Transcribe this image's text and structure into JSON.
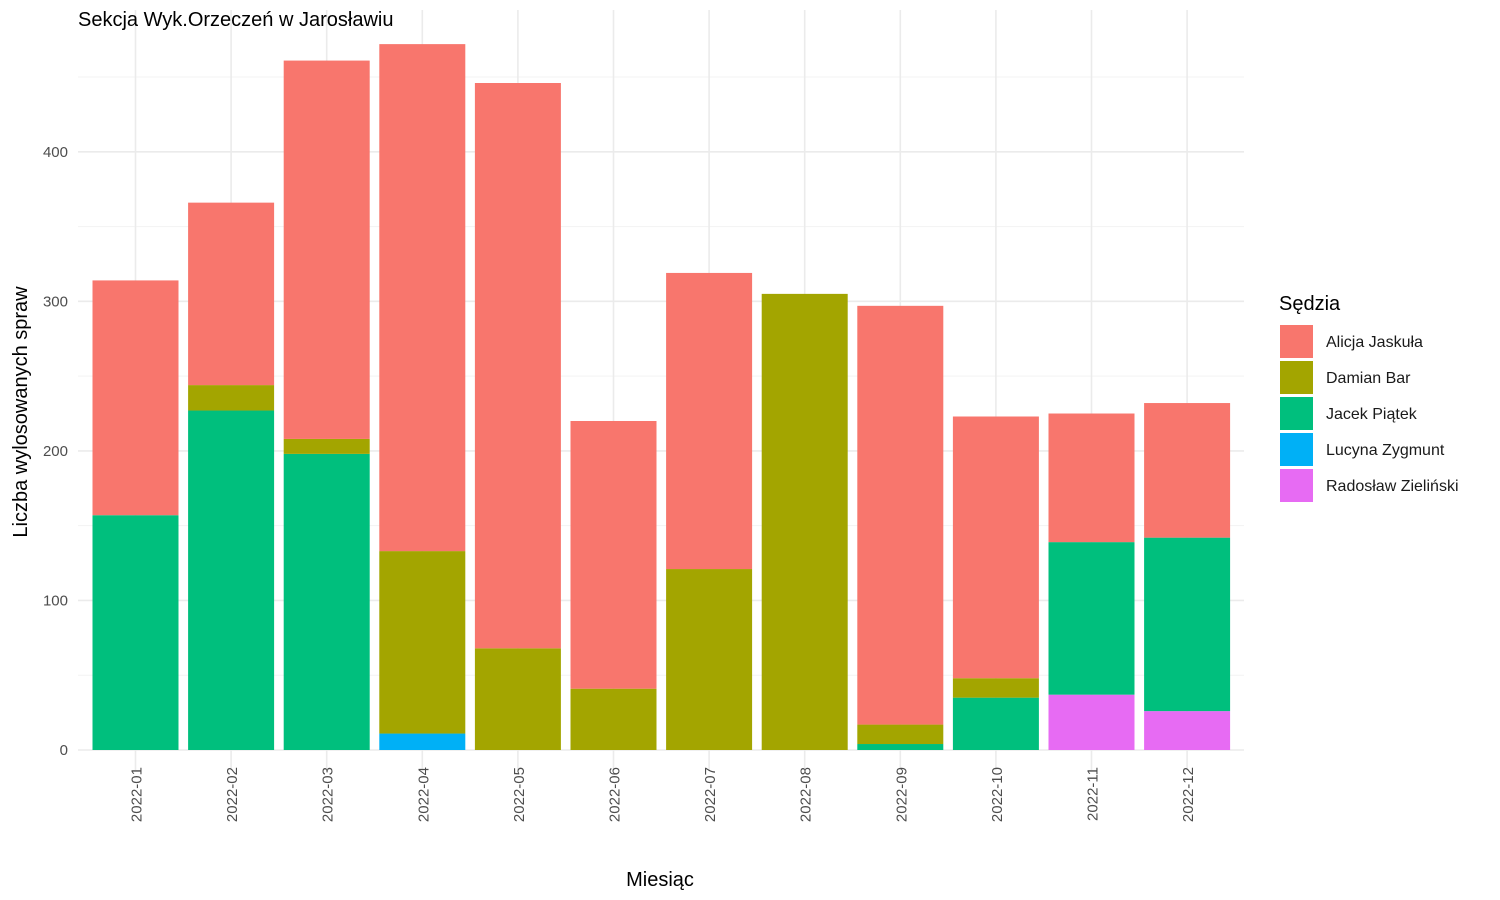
{
  "chart_data": {
    "type": "bar",
    "stacked": true,
    "title": "Sekcja Wyk.Orzeczeń w Jarosławiu",
    "xlabel": "Miesiąc",
    "ylabel": "Liczba wylosowanych spraw",
    "ylim": [
      0,
      480
    ],
    "yticks": [
      0,
      100,
      200,
      300,
      400
    ],
    "grid": true,
    "legend_title": "Sędzia",
    "legend_position": "right",
    "categories": [
      "2022-01",
      "2022-02",
      "2022-03",
      "2022-04",
      "2022-05",
      "2022-06",
      "2022-07",
      "2022-08",
      "2022-09",
      "2022-10",
      "2022-11",
      "2022-12"
    ],
    "series": [
      {
        "name": "Radosław Zieliński",
        "color": "#E76BF3",
        "values": [
          0,
          0,
          0,
          0,
          0,
          0,
          0,
          0,
          0,
          0,
          37,
          26
        ]
      },
      {
        "name": "Lucyna Zygmunt",
        "color": "#00B0F6",
        "values": [
          0,
          0,
          0,
          11,
          0,
          0,
          0,
          0,
          0,
          0,
          0,
          0
        ]
      },
      {
        "name": "Jacek Piątek",
        "color": "#00BF7D",
        "values": [
          157,
          227,
          198,
          0,
          0,
          0,
          0,
          0,
          4,
          35,
          102,
          116
        ]
      },
      {
        "name": "Damian Bar",
        "color": "#A3A500",
        "values": [
          0,
          17,
          10,
          122,
          68,
          41,
          121,
          305,
          13,
          13,
          0,
          0
        ]
      },
      {
        "name": "Alicja Jaskuła",
        "color": "#F8766D",
        "values": [
          157,
          122,
          253,
          339,
          378,
          179,
          198,
          0,
          280,
          175,
          86,
          90
        ]
      }
    ],
    "legend_order": [
      "Alicja Jaskuła",
      "Damian Bar",
      "Jacek Piątek",
      "Lucyna Zygmunt",
      "Radosław Zieliński"
    ]
  }
}
